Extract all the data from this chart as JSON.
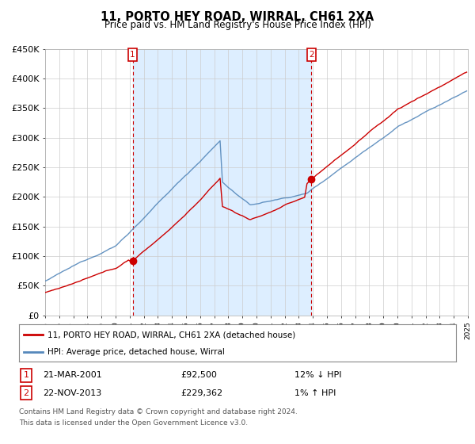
{
  "title": "11, PORTO HEY ROAD, WIRRAL, CH61 2XA",
  "subtitle": "Price paid vs. HM Land Registry's House Price Index (HPI)",
  "ylabel_ticks": [
    "£0",
    "£50K",
    "£100K",
    "£150K",
    "£200K",
    "£250K",
    "£300K",
    "£350K",
    "£400K",
    "£450K"
  ],
  "ylim": [
    0,
    450000
  ],
  "xlim": [
    1995,
    2025
  ],
  "red_color": "#cc0000",
  "blue_color": "#5588bb",
  "shade_color": "#ddeeff",
  "legend_label_red": "11, PORTO HEY ROAD, WIRRAL, CH61 2XA (detached house)",
  "legend_label_blue": "HPI: Average price, detached house, Wirral",
  "sale1_year": 2001.21,
  "sale1_price": 92500,
  "sale1_label": "1",
  "sale1_date": "21-MAR-2001",
  "sale1_pct": "12% ↓ HPI",
  "sale2_year": 2013.9,
  "sale2_price": 229362,
  "sale2_label": "2",
  "sale2_date": "22-NOV-2013",
  "sale2_pct": "1% ↑ HPI",
  "footnote1": "Contains HM Land Registry data © Crown copyright and database right 2024.",
  "footnote2": "This data is licensed under the Open Government Licence v3.0.",
  "background_color": "#ffffff",
  "grid_color": "#cccccc"
}
